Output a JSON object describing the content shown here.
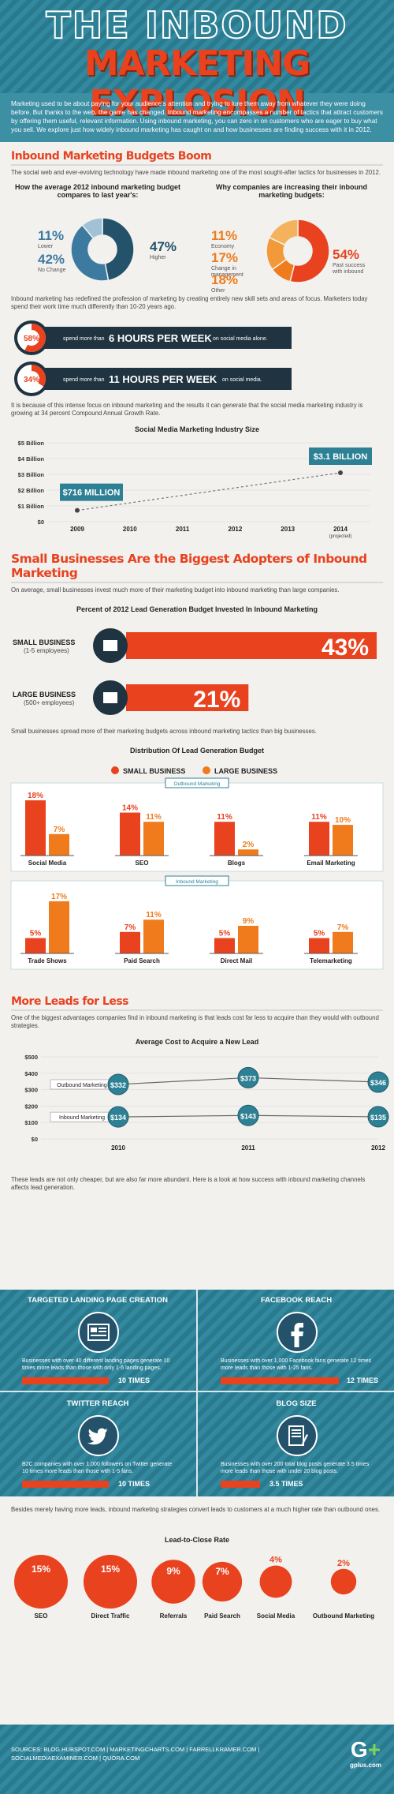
{
  "header": {
    "title_line1": "THE INBOUND",
    "title_line2": "MARKETING EXPLOSION"
  },
  "intro": "Marketing used to be about paying for your audience's attention and trying to lure them away from whatever they were doing before. But thanks to the web, the game has changed. Inbound marketing encompasses a number of tactics that attract customers by offering them useful, relevant information. Using inbound marketing, you can zero in on customers who are eager to buy what you sell. We explore just how widely inbound marketing has caught on and how businesses are finding success with it in 2012.",
  "s1": {
    "title": "Inbound Marketing Budgets Boom",
    "text": "The social web and ever-evolving technology have made inbound marketing one of the most sought-after tactics for businesses in 2012.",
    "pie1_title": "How the average 2012 inbound marketing budget compares to last year's:",
    "pie2_title": "Why companies are increasing their inbound marketing budgets:",
    "text2": "Inbound marketing has redefined the profession of marketing by creating entirely new skill sets and areas of focus. Marketers today spend their work time much differently than 10-20 years ago.",
    "stat1_pct": "58%",
    "stat1_pre": "spend more than",
    "stat1_big": "6 HOURS PER WEEK",
    "stat1_post": "on social media alone.",
    "stat2_pct": "34%",
    "stat2_pre": "spend more than",
    "stat2_big": "11 HOURS PER WEEK",
    "stat2_post": "on social media.",
    "text3": "It is because of this intense focus on inbound marketing and the results it can generate that the social media marketing industry is growing at 34 percent Compound Annual Growth Rate.",
    "line_title": "Social Media Marketing Industry Size"
  },
  "s2": {
    "title": "Small Businesses Are the Biggest Adopters of Inbound Marketing",
    "text": "On average, small businesses invest much more of their marketing budget into inbound marketing than large companies.",
    "hbar_title": "Percent of 2012 Lead Generation Budget Invested In Inbound Marketing",
    "text2": "Small businesses spread more of their marketing budgets across inbound marketing tactics than big businesses.",
    "dist_title": "Distribution Of Lead Generation Budget",
    "legend_small": "SMALL BUSINESS",
    "legend_large": "LARGE BUSINESS",
    "group1": "Outbound Marketing",
    "group2": "Inbound Marketing"
  },
  "s3": {
    "title": "More Leads for Less",
    "text": "One of the biggest advantages companies find in inbound marketing is that leads cost far less to acquire than they would with outbound strategies.",
    "cost_title": "Average Cost to Acquire a New Lead",
    "text2": "These leads are not only cheaper, but are also far more abundant. Here is a look at how success with inbound marketing channels affects lead generation."
  },
  "cards": [
    {
      "title": "TARGETED LANDING PAGE CREATION",
      "desc": "Businesses with over 40 different landing pages generate 10 times more leads than those with only 1-5 landing pages.",
      "times": "10 TIMES",
      "icon": "landing-page-icon"
    },
    {
      "title": "FACEBOOK REACH",
      "desc": "Businesses with over 1,000 Facebook fans generate 12 times more leads than those with 1-25 fans.",
      "times": "12 TIMES",
      "icon": "facebook-icon"
    },
    {
      "title": "TWITTER REACH",
      "desc": "B2C companies with over 1,000 followers on Twitter generate 10 times more leads than those with 1-5 fans.",
      "times": "10 TIMES",
      "icon": "twitter-icon"
    },
    {
      "title": "BLOG SIZE",
      "desc": "Businesses with over 200 total blog posts generate 3.5 times more leads than those with under 20 blog posts.",
      "times": "3.5 TIMES",
      "icon": "blog-icon"
    }
  ],
  "s4": {
    "text": "Besides merely having more leads, inbound marketing strategies convert leads to customers at a much higher rate than outbound ones.",
    "close_title": "Lead-to-Close Rate"
  },
  "footer": {
    "sources": "SOURCES: BLOG.HUBSPOT.COM | MARKETINGCHARTS.COM | FARRELLKRAMER.COM | SOCIALMEDIAEXAMINER.COM | QUORA.COM",
    "brand": "gplus.com"
  },
  "colors": {
    "teal": "#2e8094",
    "navy": "#23526a",
    "red": "#e8421f",
    "orange": "#ef7b1c"
  },
  "chart_data": [
    {
      "type": "pie",
      "title": "How the average 2012 inbound marketing budget compares to last year's:",
      "slices": [
        {
          "label": "Higher",
          "value": 47
        },
        {
          "label": "No Change",
          "value": 42
        },
        {
          "label": "Lower",
          "value": 11
        }
      ]
    },
    {
      "type": "pie",
      "title": "Why companies are increasing their inbound marketing budgets:",
      "slices": [
        {
          "label": "Past success with inbound",
          "value": 54
        },
        {
          "label": "Economy",
          "value": 11
        },
        {
          "label": "Change in management",
          "value": 17
        },
        {
          "label": "Other",
          "value": 18
        }
      ]
    },
    {
      "type": "bar",
      "title": "",
      "categories": [
        "spend more than 6 HOURS PER WEEK on social media alone.",
        "spend more than 11 HOURS PER WEEK on social media."
      ],
      "values": [
        58,
        34
      ]
    },
    {
      "type": "line",
      "title": "Social Media Marketing Industry Size",
      "x": [
        "2009",
        "2010",
        "2011",
        "2012",
        "2013",
        "2014"
      ],
      "x_note": "(projected)",
      "points": [
        {
          "x": "2009",
          "y": 0.716,
          "label": "$716 MILLION"
        },
        {
          "x": "2014",
          "y": 3.1,
          "label": "$3.1 BILLION"
        }
      ],
      "yticks": [
        "$0",
        "$1 Billion",
        "$2 Billion",
        "$3 Billion",
        "$4 Billion",
        "$5 Billion"
      ],
      "ylim": [
        0,
        5
      ],
      "grid": true
    },
    {
      "type": "bar",
      "title": "Percent of 2012 Lead Generation Budget Invested In Inbound Marketing",
      "categories": [
        "SMALL BUSINESS",
        "LARGE BUSINESS"
      ],
      "sublabels": [
        "(1-5 employees)",
        "(500+ employees)"
      ],
      "values": [
        43,
        21
      ],
      "labels": [
        "43%",
        "21%"
      ]
    },
    {
      "type": "bar",
      "title": "Distribution Of Lead Generation Budget",
      "groups": [
        "Outbound Marketing",
        "Outbound Marketing",
        "Outbound Marketing",
        "Outbound Marketing",
        "Inbound Marketing",
        "Inbound Marketing",
        "Inbound Marketing",
        "Inbound Marketing"
      ],
      "categories": [
        "Social Media",
        "SEO",
        "Blogs",
        "Email Marketing",
        "Trade Shows",
        "Paid Search",
        "Direct Mail",
        "Telemarketing"
      ],
      "series": [
        {
          "name": "SMALL BUSINESS",
          "values": [
            18,
            14,
            11,
            11,
            5,
            7,
            5,
            5
          ]
        },
        {
          "name": "LARGE BUSINESS",
          "values": [
            7,
            11,
            2,
            10,
            17,
            11,
            9,
            7
          ]
        }
      ],
      "labels_small": [
        "18%",
        "14%",
        "11%",
        "11%",
        "5%",
        "7%",
        "5%",
        "5%"
      ],
      "labels_large": [
        "7%",
        "11%",
        "2%",
        "10%",
        "17%",
        "11%",
        "9%",
        "7%"
      ]
    },
    {
      "type": "line",
      "title": "Average Cost to Acquire a New Lead",
      "x": [
        "2010",
        "2011",
        "2012"
      ],
      "series": [
        {
          "name": "Outbound Marketing",
          "values": [
            332,
            373,
            346
          ],
          "labels": [
            "$332",
            "$373",
            "$346"
          ]
        },
        {
          "name": "Inbound Marketing",
          "values": [
            134,
            143,
            135
          ],
          "labels": [
            "$134",
            "$143",
            "$135"
          ]
        }
      ],
      "yticks": [
        "$0",
        "$100",
        "$200",
        "$300",
        "$400",
        "$500"
      ],
      "ylim": [
        0,
        500
      ]
    },
    {
      "type": "scatter",
      "title": "Lead-to-Close Rate",
      "categories": [
        "SEO",
        "Direct Traffic",
        "Referrals",
        "Paid Search",
        "Social Media",
        "Outbound Marketing"
      ],
      "values": [
        15,
        15,
        9,
        7,
        4,
        2
      ],
      "labels": [
        "15%",
        "15%",
        "9%",
        "7%",
        "4%",
        "2%"
      ]
    }
  ]
}
